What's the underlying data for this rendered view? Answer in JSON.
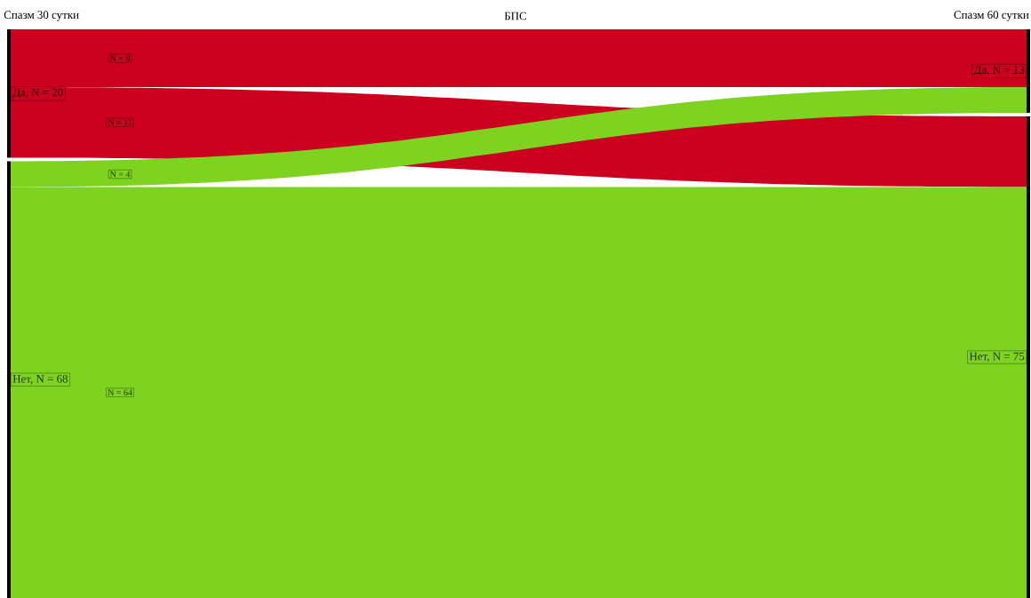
{
  "chart_data": {
    "type": "other",
    "title": "БПС",
    "categories": [
      "Спазм 30 сутки",
      "Спазм 60 сутки"
    ],
    "series": [
      {
        "color": "#cc001f",
        "values": [
          9,
          null
        ],
        "value_labels": [
          "N = 9",
          null
        ]
      },
      {
        "color": "#cc001f",
        "values": [
          11,
          null
        ],
        "value_labels": [
          "N = 11",
          null
        ]
      },
      {
        "color": "#7ed321",
        "values": [
          4,
          null
        ],
        "value_labels": [
          "N = 4",
          null
        ]
      },
      {
        "color": "#7ed321",
        "values": [
          64,
          null
        ],
        "value_labels": [
          "N = 64",
          null
        ]
      }
    ],
    "annotations": [
      "Да, N = 20",
      "Нет, N = 68",
      "Да, N = 13",
      "Нет, N = 75"
    ]
  }
}
